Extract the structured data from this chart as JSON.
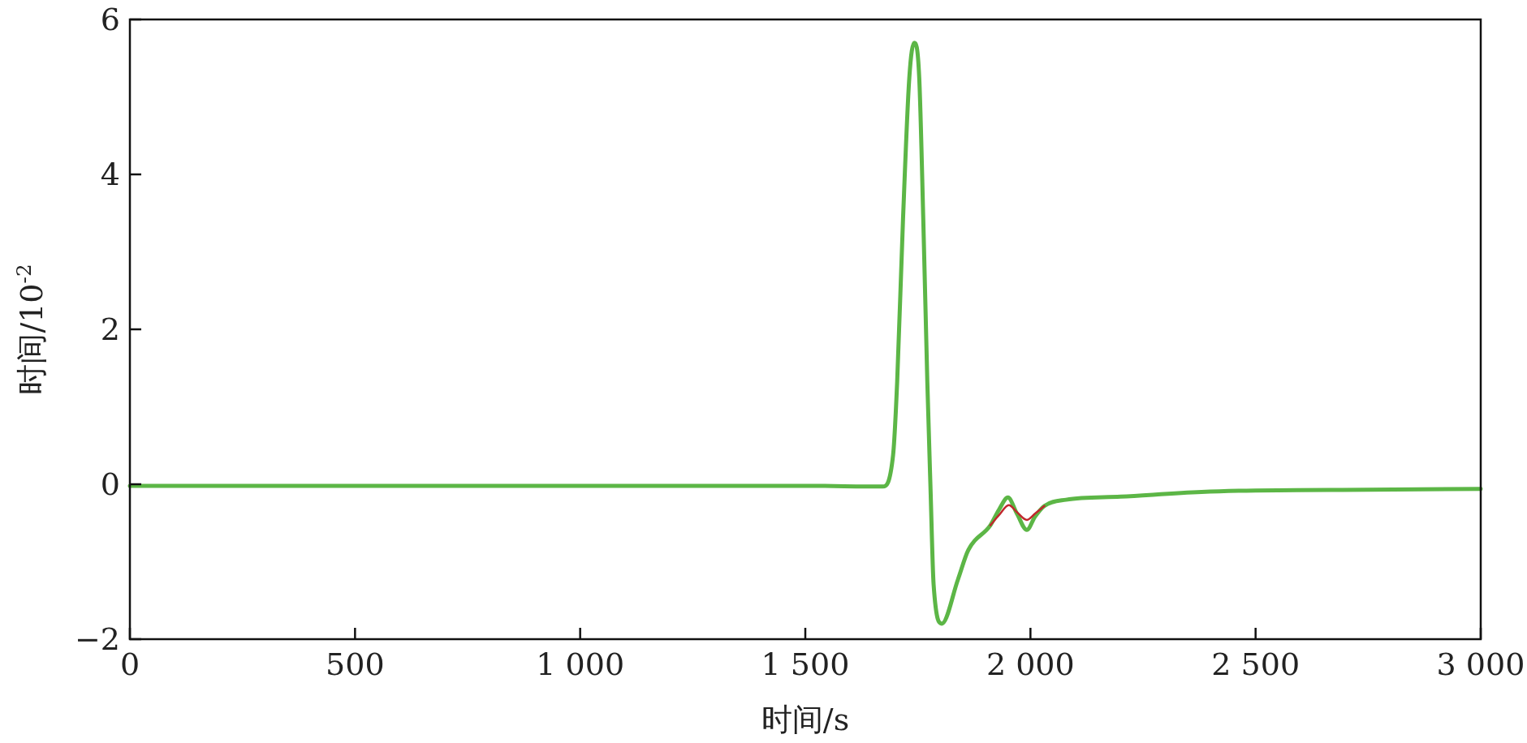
{
  "chart_data": {
    "type": "line",
    "xlabel": "时间/s",
    "ylabel": "时间/10$^{-2}$",
    "xlim": [
      0,
      3000
    ],
    "ylim": [
      -2,
      6
    ],
    "xticks": [
      0,
      500,
      {
        "value": 1000,
        "label": "1 000"
      },
      {
        "value": 1500,
        "label": "1 500"
      },
      {
        "value": 2000,
        "label": "2 000"
      },
      {
        "value": 2500,
        "label": "2 500"
      },
      {
        "value": 3000,
        "label": "3 000"
      }
    ],
    "yticks": [
      {
        "value": -2,
        "label": "−2"
      },
      0,
      2,
      4,
      6
    ],
    "grid": false,
    "line_style": "solid",
    "series": [
      {
        "color": "#5cb646",
        "x": [
          0,
          500,
          1000,
          1500,
          1672,
          1695,
          1704,
          1717,
          1731,
          1742,
          1753,
          1762,
          1771,
          1778,
          1785,
          1803,
          1839,
          1862,
          1911,
          1930,
          1950,
          1970,
          1992,
          2010,
          2031,
          2079,
          2200,
          2380,
          2500,
          2750,
          3000
        ],
        "values": [
          -0.02,
          -0.02,
          -0.02,
          -0.02,
          -0.03,
          0.38,
          1.32,
          3.42,
          5.25,
          5.7,
          5.25,
          3.42,
          1.32,
          -0.04,
          -1.3,
          -1.8,
          -1.23,
          -0.85,
          -0.53,
          -0.33,
          -0.17,
          -0.38,
          -0.59,
          -0.42,
          -0.28,
          -0.2,
          -0.16,
          -0.1,
          -0.08,
          -0.07,
          -0.06
        ]
      },
      {
        "color": "#c0282d",
        "x": [
          1911,
          1930,
          1952,
          1970,
          1992,
          2010,
          2031
        ],
        "values": [
          -0.53,
          -0.4,
          -0.27,
          -0.36,
          -0.46,
          -0.38,
          -0.28
        ]
      }
    ]
  }
}
